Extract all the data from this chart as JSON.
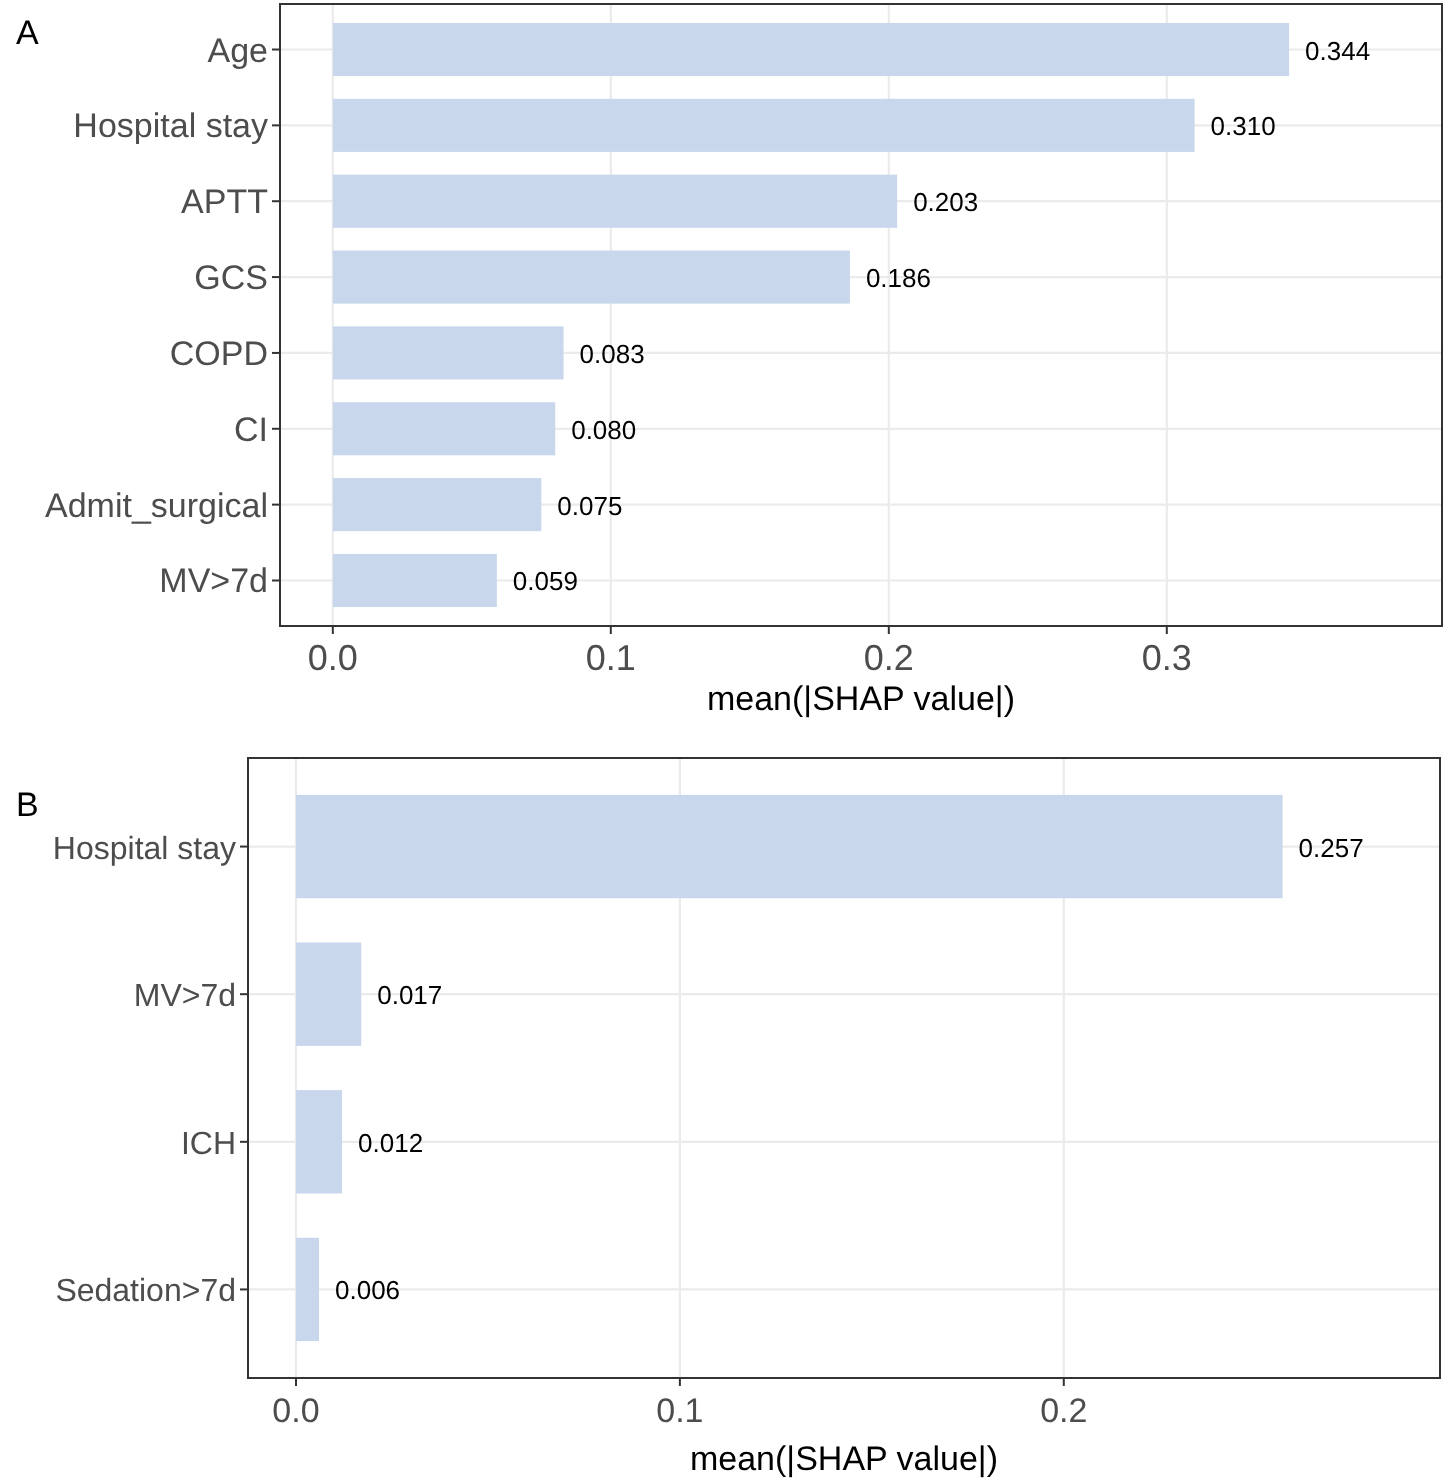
{
  "chart_data": [
    {
      "type": "bar",
      "title": "A",
      "orientation": "horizontal",
      "xlabel": "mean(|SHAP value|)",
      "categories": [
        "Age",
        "Hospital stay",
        "APTT",
        "GCS",
        "COPD",
        "CI",
        "Admit_surgical",
        "MV>7d"
      ],
      "values": [
        0.344,
        0.31,
        0.203,
        0.186,
        0.083,
        0.08,
        0.075,
        0.059
      ],
      "value_labels": [
        "0.344",
        "0.310",
        "0.203",
        "0.186",
        "0.083",
        "0.080",
        "0.075",
        "0.059"
      ],
      "color": "#c8d7ec",
      "xlim": [
        -0.019,
        0.399
      ],
      "xticks": [
        {
          "value": 0,
          "label": "0.0"
        },
        0.1,
        0.2,
        0.3
      ],
      "grid": true
    },
    {
      "type": "bar",
      "title": "B",
      "orientation": "horizontal",
      "xlabel": "mean(|SHAP value|)",
      "categories": [
        "Hospital stay",
        "MV>7d",
        "ICH",
        "Sedation>7d"
      ],
      "values": [
        0.257,
        0.017,
        0.012,
        0.006
      ],
      "value_labels": [
        "0.257",
        "0.017",
        "0.012",
        "0.006"
      ],
      "color": "#c8d7ec",
      "xlim": [
        -0.0125,
        0.298
      ],
      "xticks": [
        {
          "value": 0,
          "label": "0.0"
        },
        0.1,
        0.2
      ],
      "grid": true
    }
  ]
}
